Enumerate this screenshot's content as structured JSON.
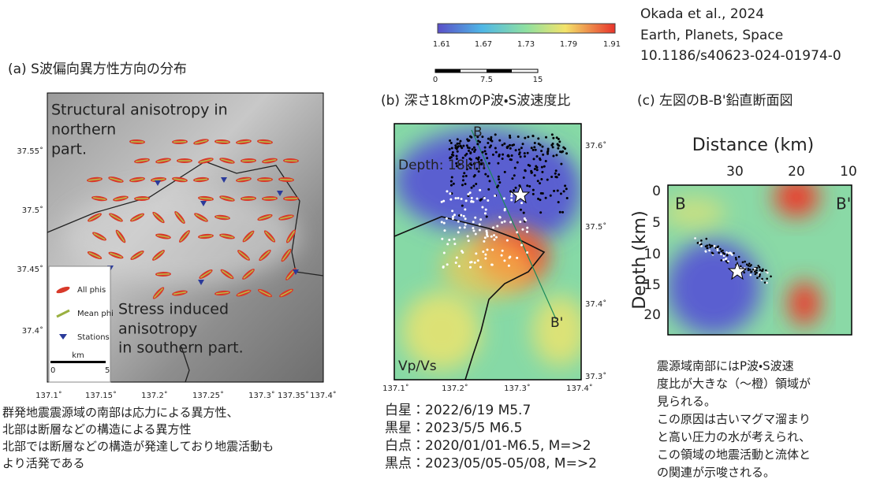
{
  "citation": [
    "Okada et al., 2024",
    "Earth, Planets, Space",
    "10.1186/s40623-024-01974-0"
  ],
  "colorbar": {
    "ticks": [
      "1.61",
      "1.67",
      "1.73",
      "1.79",
      "1.91"
    ]
  },
  "scalebar": {
    "ticks": [
      "0",
      "7.5",
      "15"
    ]
  },
  "panel_a": {
    "title": "(a) S波偏向異方性方向の分布",
    "annotation_north": [
      "Structural anisotropy in",
      "northern",
      "part."
    ],
    "annotation_south": [
      "Stress induced",
      "anisotropy",
      "in southern part."
    ],
    "legend": {
      "items": [
        "All phis",
        "Mean phi",
        "Stations"
      ],
      "scale_unit": "km",
      "scale_ticks": [
        "0",
        "5"
      ]
    },
    "yticks": [
      "37.55˚",
      "37.5˚",
      "37.45˚",
      "37.4˚"
    ],
    "xticks": [
      "137.1˚",
      "137.15˚",
      "137.2˚",
      "137.25˚",
      "137.3˚",
      "137.35˚",
      "137.4˚"
    ],
    "caption": [
      "群発地震震源域の南部は応力による異方性、",
      "北部は断層などの構造による異方性",
      "北部では断層などの構造が発達しており地震活動も",
      "より活発である"
    ]
  },
  "panel_b": {
    "title": "(b) 深さ18kmのP波・S波速度比",
    "depth_label": "Depth: 18km",
    "section_start": "B",
    "section_end": "B'",
    "quantity": "Vp/Vs",
    "yticks": [
      "37.6˚",
      "37.5˚",
      "37.4˚",
      "37.3˚"
    ],
    "xticks": [
      "137.1˚",
      "137.2˚",
      "137.3˚",
      "137.4˚"
    ],
    "legend": [
      "白星：2022/6/19 M5.7",
      "黒星：2023/5/5 M6.5",
      "白点：2020/01/01-M6.5, M=>2",
      "黒点：2023/05/05-05/08, M=>2"
    ]
  },
  "panel_c": {
    "title": "(c) 左図のB-B'鉛直断面図",
    "x_label": "Distance (km)",
    "y_label": "Depth (km)",
    "xticks": [
      "30",
      "20",
      "10"
    ],
    "yticks": [
      "0",
      "5",
      "10",
      "15",
      "20"
    ],
    "section_start": "B",
    "section_end": "B'",
    "caption": [
      "震源域南部にはP波・S波速",
      "度比が大きな（～橙）領域が",
      "見られる。",
      "この原因は古いマグマ溜まり",
      "と高い圧力の水が考えられ、",
      "この領域の地震活動と流体と",
      "の関連が示唆される。"
    ]
  }
}
